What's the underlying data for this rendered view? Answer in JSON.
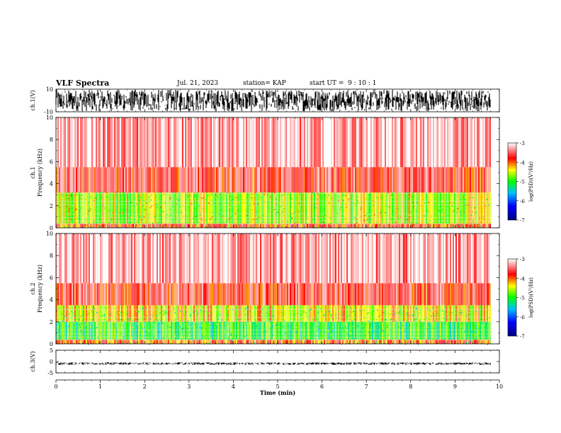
{
  "header": {
    "title": "VLF Spectra",
    "date": "Jul. 21, 2023",
    "station": "station= KAP",
    "start_ut": "start UT =  9 : 10 : 1"
  },
  "chart_data": [
    {
      "type": "line",
      "title": "",
      "ylabel": "ch.1(V)",
      "ylim": [
        -10,
        10
      ],
      "yticks": [
        "10",
        "-10"
      ],
      "xlim": [
        0,
        10
      ],
      "description_series": "ch.1 waveform (V)"
    },
    {
      "type": "heatmap",
      "ylabel": "ch.1\nFrequency (kHz)",
      "ylabel_lines": [
        "ch.1",
        "Frequency (kHz)"
      ],
      "ylim": [
        0,
        10
      ],
      "yticks": [
        "0",
        "2",
        "4",
        "6",
        "8",
        "10"
      ],
      "xlim": [
        0,
        10
      ],
      "colorbar": {
        "label": "log(PSD)(V²/Hz)",
        "range": [
          -7,
          -3
        ],
        "ticks": [
          "-3",
          "-4",
          "-5",
          "-6",
          "-7"
        ]
      },
      "bands": [
        {
          "freq_kHz": [
            0,
            0.4
          ],
          "log_psd": -3.9
        },
        {
          "freq_kHz": [
            0.4,
            3.2
          ],
          "log_psd": -4.6
        },
        {
          "freq_kHz": [
            3.2,
            5.5
          ],
          "log_psd": -3.7
        },
        {
          "freq_kHz": [
            5.5,
            10
          ],
          "log_psd": -3.3
        }
      ]
    },
    {
      "type": "heatmap",
      "ylabel": "ch.2\nFrequency (kHz)",
      "ylabel_lines": [
        "ch.2",
        "Frequency (kHz)"
      ],
      "ylim": [
        0,
        10
      ],
      "yticks": [
        "0",
        "2",
        "4",
        "6",
        "8",
        "10"
      ],
      "xlim": [
        0,
        10
      ],
      "colorbar": {
        "label": "log(PSD)(V²/Hz)",
        "range": [
          -7,
          -3
        ],
        "ticks": [
          "-3",
          "-4",
          "-5",
          "-6",
          "-7"
        ]
      },
      "bands": [
        {
          "freq_kHz": [
            0,
            0.4
          ],
          "log_psd": -4.0
        },
        {
          "freq_kHz": [
            0.4,
            2.0
          ],
          "log_psd": -5.0
        },
        {
          "freq_kHz": [
            2.0,
            3.5
          ],
          "log_psd": -4.4
        },
        {
          "freq_kHz": [
            3.5,
            5.5
          ],
          "log_psd": -3.7
        },
        {
          "freq_kHz": [
            5.5,
            10
          ],
          "log_psd": -3.3
        }
      ]
    },
    {
      "type": "line",
      "ylabel": "ch.3(V)",
      "ylim": [
        -5,
        5
      ],
      "yticks": [
        "5",
        "0",
        "-5"
      ],
      "xlim": [
        0,
        10
      ],
      "xlabel": "Time (min)",
      "xticks": [
        "0",
        "1",
        "2",
        "3",
        "4",
        "5",
        "6",
        "7",
        "8",
        "9",
        "10"
      ]
    }
  ]
}
